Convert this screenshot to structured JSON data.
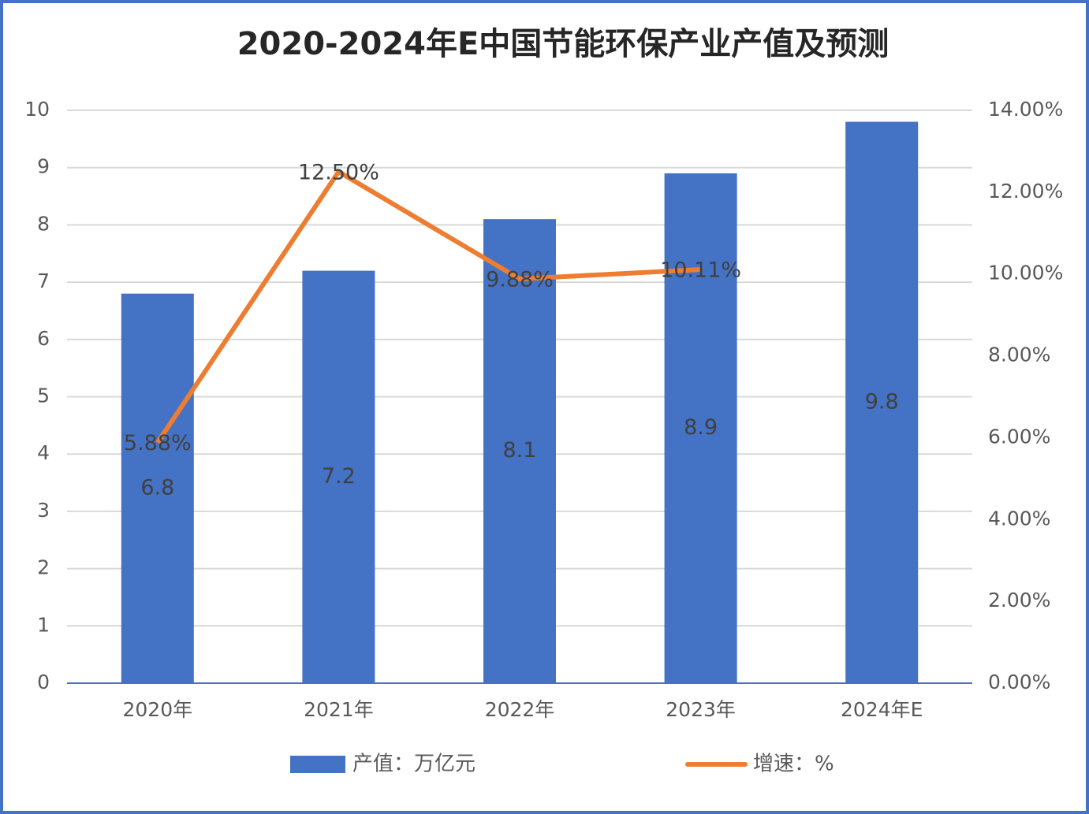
{
  "chart_data": {
    "type": "bar",
    "title": "2020-2024年E中国节能环保产业产值及预测",
    "categories": [
      "2020年",
      "2021年",
      "2022年",
      "2023年",
      "2024年E"
    ],
    "series": [
      {
        "name": "产值：万亿元",
        "type": "bar",
        "color": "#4472c4",
        "values": [
          6.8,
          7.2,
          8.1,
          8.9,
          9.8
        ]
      },
      {
        "name": "增速：%",
        "type": "line",
        "axis": "y2",
        "color": "#ed7d31",
        "values": [
          5.88,
          12.5,
          9.88,
          10.11,
          null
        ],
        "value_labels": [
          "5.88%",
          "12.50%",
          "9.88%",
          "10.11%",
          null
        ]
      }
    ],
    "ylim": [
      0,
      10
    ],
    "yticks": [
      0,
      1,
      2,
      3,
      4,
      5,
      6,
      7,
      8,
      9,
      10
    ],
    "y2lim": [
      0,
      14
    ],
    "y2ticks": [
      {
        "value": 0,
        "label": "0.00%"
      },
      {
        "value": 2,
        "label": "2.00%"
      },
      {
        "value": 4,
        "label": "4.00%"
      },
      {
        "value": 6,
        "label": "6.00%"
      },
      {
        "value": 8,
        "label": "8.00%"
      },
      {
        "value": 10,
        "label": "10.00%"
      },
      {
        "value": 12,
        "label": "12.00%"
      },
      {
        "value": 14,
        "label": "14.00%"
      }
    ],
    "grid": true,
    "legend": "bottom"
  }
}
